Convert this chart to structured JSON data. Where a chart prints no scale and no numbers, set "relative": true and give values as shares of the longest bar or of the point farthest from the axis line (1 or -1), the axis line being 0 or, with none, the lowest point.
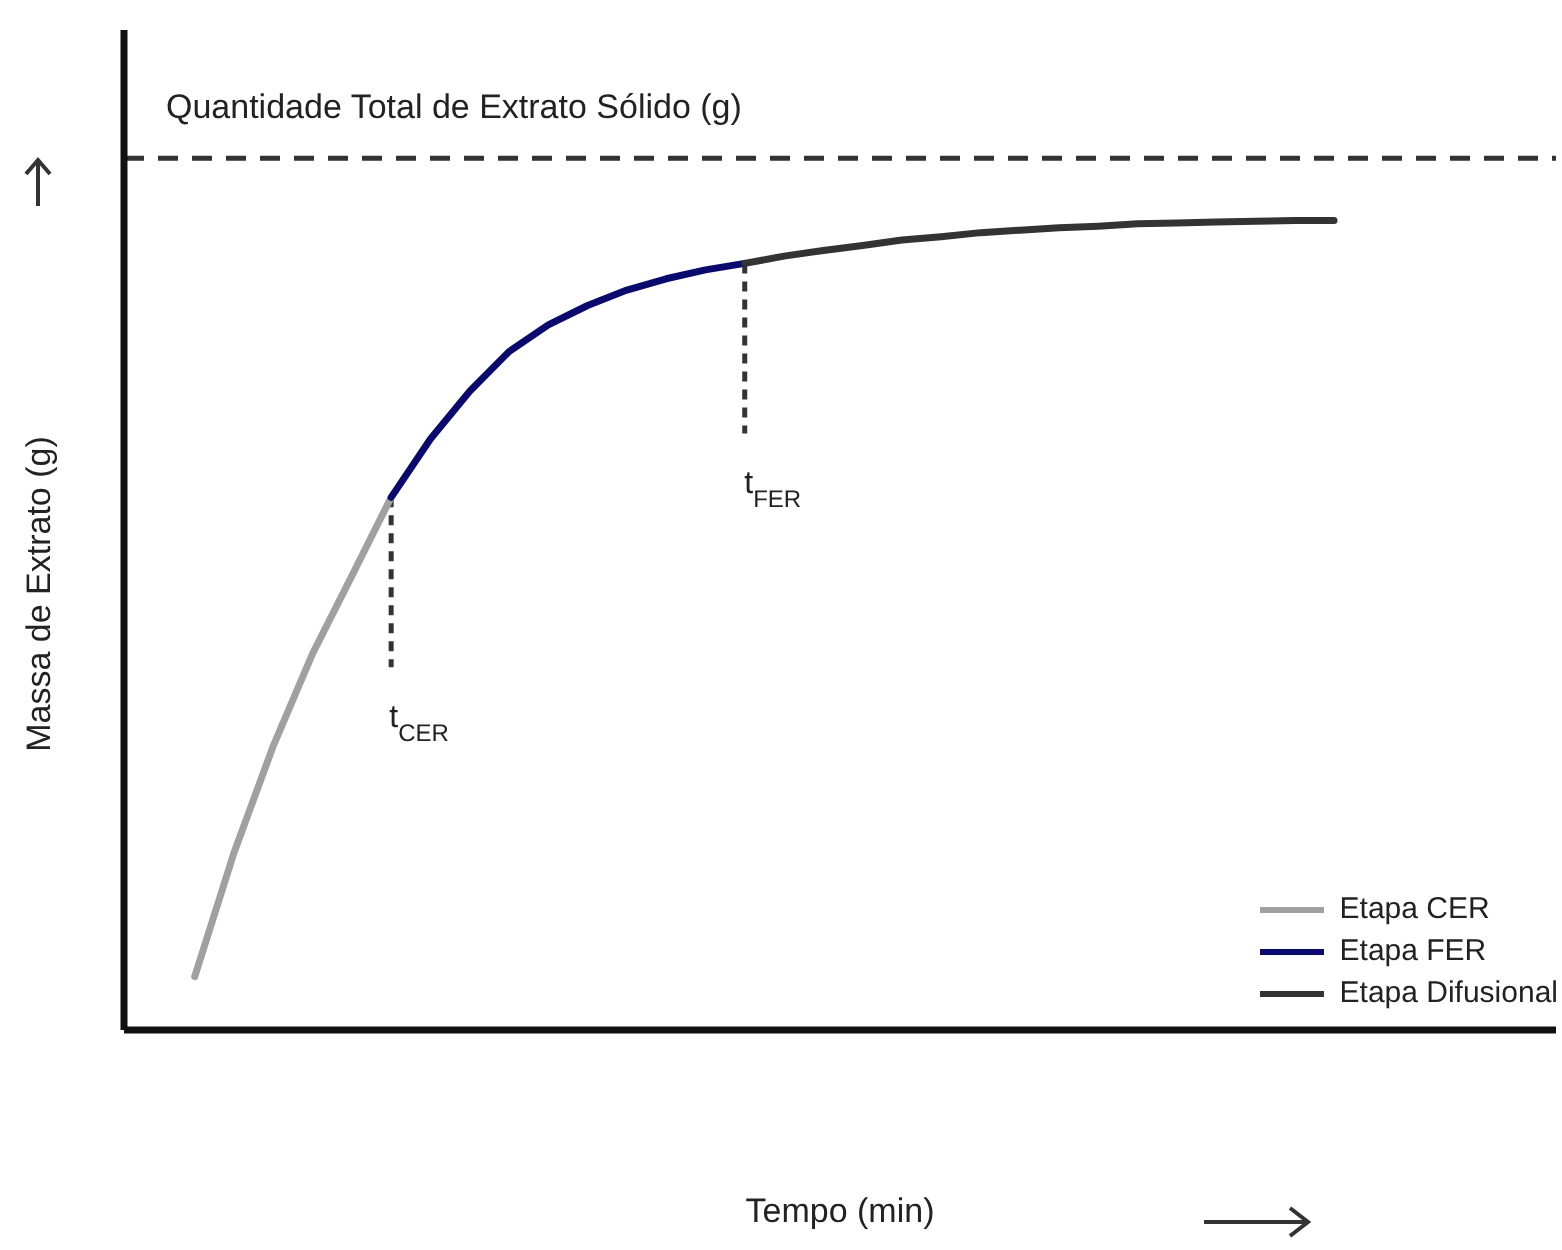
{
  "chart_data": {
    "type": "line",
    "relative": true,
    "xlabel": "Tempo (min)",
    "ylabel": "Massa de Extrato (g)",
    "categories": [
      null,
      null,
      null,
      null,
      null,
      null,
      null,
      null,
      null,
      null,
      null,
      null,
      null,
      null,
      null,
      null,
      null,
      null,
      null,
      null,
      null,
      null,
      null,
      null,
      null,
      null,
      null,
      null,
      null,
      null
    ],
    "series": [
      {
        "name": "Etapa CER",
        "color": "#a0a0a0",
        "values": [
          0.066,
          0.219,
          0.351,
          0.465,
          0.561,
          0.658,
          null,
          null,
          null,
          null,
          null,
          null,
          null,
          null,
          null,
          null,
          null,
          null,
          null,
          null,
          null,
          null,
          null,
          null,
          null,
          null,
          null,
          null,
          null,
          null
        ]
      },
      {
        "name": "Etapa FER",
        "color": "#0a0a6e",
        "values": [
          null,
          null,
          null,
          null,
          null,
          0.658,
          0.73,
          0.789,
          0.838,
          0.871,
          0.895,
          0.914,
          0.928,
          0.939,
          0.947,
          null,
          null,
          null,
          null,
          null,
          null,
          null,
          null,
          null,
          null,
          null,
          null,
          null,
          null,
          null
        ]
      },
      {
        "name": "Etapa Difusional",
        "color": "#333333",
        "values": [
          null,
          null,
          null,
          null,
          null,
          null,
          null,
          null,
          null,
          null,
          null,
          null,
          null,
          null,
          0.947,
          0.956,
          0.963,
          0.969,
          0.976,
          0.98,
          0.985,
          0.988,
          0.991,
          0.993,
          0.996,
          0.997,
          0.998,
          0.999,
          1,
          1
        ]
      }
    ],
    "ref_lines": [
      {
        "axis": "y",
        "value": 1.077,
        "label": "Quantidade Total de Extrato Sólido (g)",
        "color": "#333333",
        "line_style": "dashed"
      }
    ],
    "annotations": [
      "t$_{CER}$",
      "t$_{FER}$"
    ],
    "legend": "bottom right",
    "line_style": "solid",
    "marker": "none",
    "grid": false
  }
}
